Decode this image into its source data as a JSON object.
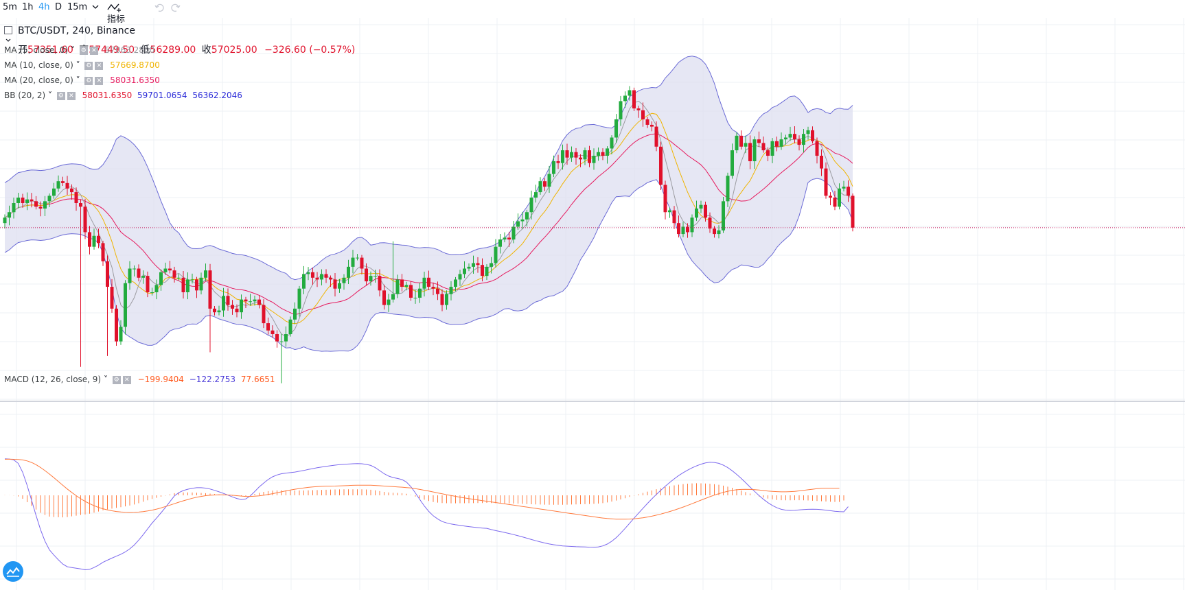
{
  "toolbar": {
    "intervals": [
      "5m",
      "1h",
      "4h",
      "D",
      "15m"
    ],
    "active_interval": "4h",
    "dropdown_icon": "chevron-down-icon",
    "indicators_label": "指标",
    "undo_icon": "undo-icon",
    "redo_icon": "redo-icon"
  },
  "symbol": {
    "name": "BTC/USDT, 240, Binance",
    "open_label": "开",
    "open": "57351.60",
    "high_label": "高",
    "high": "57449.50",
    "low_label": "低",
    "low": "56289.00",
    "close_label": "收",
    "close": "57025.00",
    "change": "−326.60 (−0.57%)"
  },
  "legends": {
    "ma5": {
      "name": "MA (5, close, 0)",
      "value": "57063.2800"
    },
    "ma10": {
      "name": "MA (10, close, 0)",
      "value": "57669.8700"
    },
    "ma20": {
      "name": "MA (20, close, 0)",
      "value": "58031.6350"
    },
    "bb": {
      "name": "BB (20, 2)",
      "basis": "58031.6350",
      "upper": "59701.0654",
      "lower": "56362.2046"
    },
    "macd": {
      "name": "MACD (12, 26, close, 9)",
      "hist": "−199.9404",
      "macd": "−122.2753",
      "signal": "77.6651"
    }
  },
  "colors": {
    "up": "#22ab3e",
    "down": "#e0112b",
    "ma5": "#9b9ba0",
    "ma10": "#f0b400",
    "ma20": "#e6195d",
    "bb_band": "#6b6bd6",
    "bb_fill": "#dedff0",
    "macd_line": "#7b68ee",
    "signal_line": "#ff7a3d",
    "hist": "#ff7a3d",
    "last_price_line": "#c2185b",
    "accent": "#2196f3"
  },
  "chart_data": [
    {
      "type": "candlestick",
      "title": "BTC/USDT, 240, Binance",
      "price_range_approx": [
        52800,
        62600
      ],
      "x_start_index": 0,
      "closes": [
        57300,
        57450,
        57700,
        57850,
        57700,
        57800,
        57750,
        57600,
        57550,
        57750,
        57900,
        58100,
        58300,
        58250,
        58100,
        58000,
        57700,
        57600,
        56900,
        56500,
        56800,
        56600,
        56100,
        55400,
        54800,
        53900,
        54300,
        55500,
        55900,
        55900,
        55650,
        55700,
        55250,
        55250,
        55450,
        55800,
        55900,
        55850,
        55650,
        55650,
        55250,
        55600,
        55600,
        55300,
        55650,
        55850,
        54800,
        54700,
        54750,
        55150,
        54900,
        54800,
        54700,
        55050,
        55000,
        55000,
        55050,
        54900,
        54400,
        54200,
        54100,
        53900,
        53900,
        54100,
        54500,
        54800,
        55350,
        55750,
        55800,
        55650,
        55600,
        55750,
        55650,
        55600,
        55350,
        55500,
        55650,
        55950,
        56200,
        56200,
        55900,
        55550,
        55700,
        55700,
        55300,
        54900,
        55050,
        55200,
        55600,
        55400,
        55450,
        55100,
        55100,
        55350,
        55650,
        55400,
        55350,
        55200,
        54900,
        55200,
        55400,
        55600,
        55750,
        55900,
        55950,
        56050,
        56000,
        55700,
        55950,
        56050,
        56500,
        56700,
        56750,
        56700,
        57050,
        57200,
        57250,
        57450,
        57850,
        58000,
        58300,
        58150,
        58500,
        58850,
        58800,
        59150,
        58950,
        59100,
        58950,
        58900,
        59150,
        58800,
        59000,
        59100,
        59000,
        59200,
        59500,
        60000,
        60500,
        60650,
        60800,
        60300,
        60250,
        60000,
        59850,
        59800,
        59250,
        58200,
        57450,
        57500,
        57150,
        56850,
        57050,
        56900,
        57300,
        57550,
        57650,
        57300,
        57000,
        56850,
        56950,
        57750,
        58450,
        59150,
        59550,
        59250,
        59350,
        58850,
        59450,
        59350,
        59150,
        59000,
        59400,
        59250,
        59450,
        59500,
        59600,
        59450,
        59300,
        59600,
        59700,
        59400,
        59000,
        58650,
        57900,
        57850,
        57600,
        58100,
        58150,
        57900,
        57025
      ]
    },
    {
      "type": "line",
      "title": "MACD (12, 26, close, 9)",
      "series": [
        {
          "name": "MACD",
          "values": [
            395,
            392,
            383,
            345,
            249,
            108,
            -53,
            -217,
            -370,
            -495,
            -589,
            -645,
            -696,
            -742,
            -771,
            -780,
            -787,
            -794,
            -804,
            -799,
            -779,
            -754,
            -723,
            -700,
            -678,
            -657,
            -636,
            -611,
            -578,
            -537,
            -484,
            -425,
            -362,
            -300,
            -246,
            -189,
            -131,
            -68,
            -7,
            29,
            52,
            66,
            76,
            82,
            82,
            78,
            68,
            54,
            38,
            21,
            2,
            -17,
            -34,
            -45,
            -39,
            -7,
            41,
            90,
            132,
            170,
            200,
            220,
            233,
            240,
            245,
            251,
            260,
            268,
            279,
            288,
            298,
            306,
            313,
            319,
            326,
            331,
            335,
            338,
            341,
            342,
            341,
            334,
            323,
            299,
            267,
            233,
            208,
            192,
            182,
            170,
            143,
            93,
            26,
            -46,
            -115,
            -173,
            -221,
            -255,
            -283,
            -298,
            -310,
            -318,
            -324,
            -331,
            -338,
            -344,
            -349,
            -353,
            -356,
            -370,
            -381,
            -391,
            -401,
            -412,
            -424,
            -436,
            -449,
            -463,
            -477,
            -490,
            -503,
            -515,
            -525,
            -533,
            -540,
            -546,
            -549,
            -552,
            -555,
            -556,
            -558,
            -560,
            -561,
            -557,
            -546,
            -526,
            -496,
            -457,
            -409,
            -357,
            -302,
            -247,
            -193,
            -140,
            -88,
            -38,
            10,
            55,
            98,
            139,
            178,
            213,
            244,
            272,
            297,
            318,
            336,
            350,
            357,
            355,
            345,
            326,
            299,
            265,
            226,
            183,
            137,
            89,
            43,
            -2,
            -43,
            -79,
            -110,
            -134,
            -151,
            -160,
            -163,
            -162,
            -158,
            -154,
            -151,
            -150,
            -151,
            -155,
            -160,
            -166,
            -172,
            -176,
            -178,
            -122
          ]
        },
        {
          "name": "Signal",
          "values": [
            389,
            390,
            389,
            387,
            382,
            372,
            355,
            331,
            301,
            267,
            230,
            190,
            149,
            108,
            68,
            31,
            -4,
            -36,
            -65,
            -90,
            -112,
            -130,
            -145,
            -157,
            -167,
            -175,
            -180,
            -184,
            -185,
            -184,
            -181,
            -176,
            -169,
            -160,
            -149,
            -136,
            -121,
            -106,
            -90,
            -74,
            -59,
            -45,
            -32,
            -21,
            -12,
            -4,
            1,
            4,
            6,
            6,
            4,
            1,
            -4,
            -8,
            -12,
            -12,
            -10,
            -5,
            1,
            9,
            18,
            28,
            38,
            48,
            57,
            66,
            73,
            80,
            86,
            91,
            95,
            97,
            99,
            99,
            100,
            102,
            104,
            106,
            108,
            109,
            110,
            110,
            109,
            107,
            104,
            100,
            97,
            94,
            91,
            88,
            84,
            79,
            72,
            64,
            55,
            46,
            36,
            26,
            16,
            7,
            -2,
            -11,
            -20,
            -28,
            -36,
            -43,
            -50,
            -57,
            -64,
            -71,
            -78,
            -85,
            -92,
            -99,
            -106,
            -113,
            -120,
            -127,
            -134,
            -141,
            -148,
            -155,
            -162,
            -169,
            -176,
            -183,
            -190,
            -197,
            -204,
            -211,
            -218,
            -225,
            -232,
            -239,
            -245,
            -250,
            -254,
            -257,
            -258,
            -258,
            -256,
            -253,
            -248,
            -242,
            -234,
            -225,
            -214,
            -202,
            -189,
            -175,
            -160,
            -144,
            -127,
            -109,
            -90,
            -71,
            -52,
            -33,
            -15,
            2,
            18,
            32,
            44,
            53,
            60,
            64,
            65,
            64,
            61,
            57,
            52,
            47,
            43,
            40,
            38,
            38,
            40,
            43,
            48,
            54,
            60,
            66,
            72,
            77,
            78,
            78,
            77,
            77.6651
          ]
        },
        {
          "name": "Histogram",
          "values": [
            6,
            2,
            -6,
            -42,
            -133,
            -264,
            -408,
            -548,
            -671,
            -762,
            -819,
            -835,
            -845,
            -850,
            -839,
            -811,
            -783,
            -758,
            -739,
            -709,
            -667,
            -624,
            -578,
            -543,
            -511,
            -482,
            -456,
            -427,
            -393,
            -353,
            -303,
            -249,
            -193,
            -140,
            -97,
            -53,
            -10,
            38,
            83,
            103,
            111,
            111,
            108,
            103,
            94,
            82,
            67,
            50,
            32,
            15,
            -2,
            -18,
            -30,
            -37,
            -27,
            5,
            51,
            95,
            131,
            161,
            182,
            192,
            195,
            192,
            188,
            185,
            187,
            188,
            193,
            197,
            203,
            209,
            214,
            220,
            226,
            229,
            231,
            232,
            233,
            233,
            231,
            224,
            214,
            192,
            163,
            133,
            111,
            98,
            91,
            82,
            59,
            14,
            -46,
            -110,
            -170,
            -219,
            -257,
            -281,
            -299,
            -305,
            -308,
            -307,
            -304,
            -303,
            -302,
            -301,
            -299,
            -296,
            -292,
            -299,
            -303,
            -306,
            -309,
            -312,
            -317,
            -322,
            -329,
            -336,
            -343,
            -349,
            -355,
            -360,
            -363,
            -364,
            -364,
            -363,
            -359,
            -355,
            -351,
            -345,
            -340,
            -335,
            -329,
            -318,
            -301,
            -276,
            -242,
            -203,
            -158,
            -111,
            -61,
            -9,
            41,
            91,
            141,
            189,
            234,
            276,
            317,
            353,
            384,
            411,
            433,
            449,
            460,
            465,
            463,
            457,
            446,
            430,
            406,
            374,
            335,
            290,
            239,
            184,
            127,
            69,
            13,
            -39,
            -86,
            -125,
            -156,
            -177,
            -189,
            -193,
            -191,
            -188,
            -188,
            -193,
            -200,
            -209,
            -219,
            -229,
            -238,
            -248,
            -256,
            -253,
            -199.9404
          ]
        }
      ]
    }
  ]
}
